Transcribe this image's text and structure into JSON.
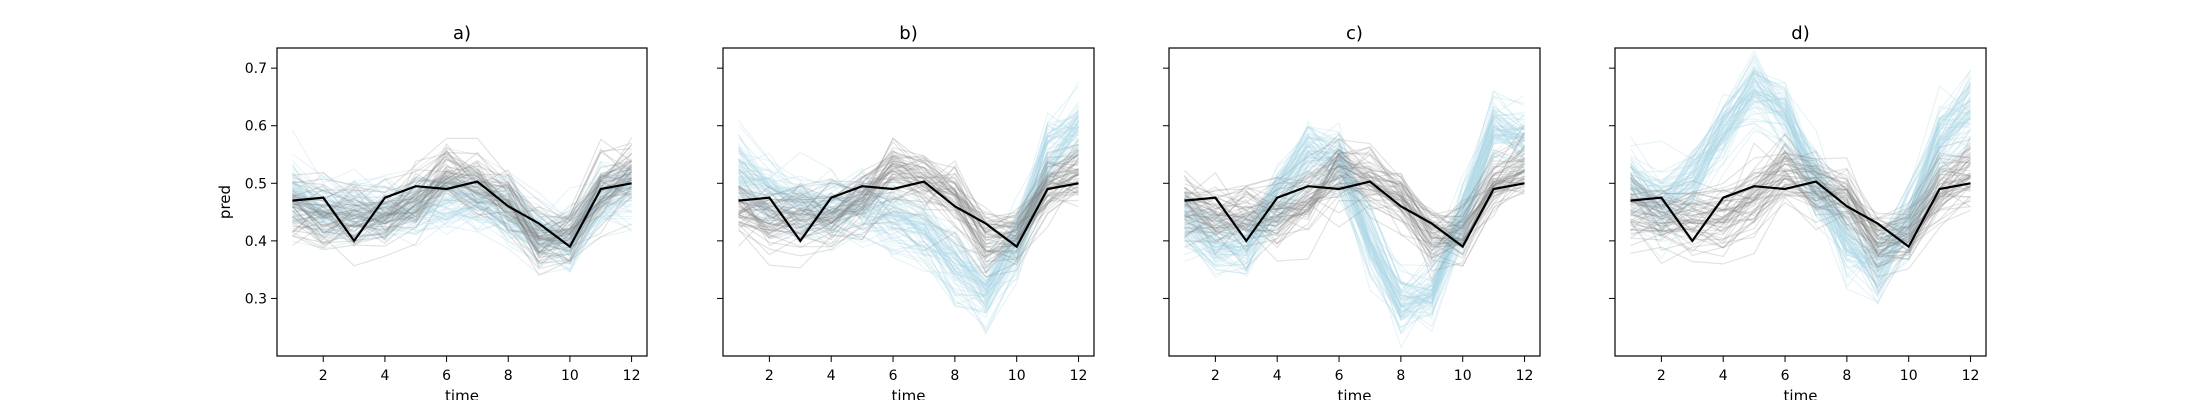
{
  "colors": {
    "background": "#ffffff",
    "observed": "#000000",
    "gray_samples": "#808080",
    "blue_samples": "#add8e6"
  },
  "chart_data": [
    {
      "type": "line",
      "title": "a)",
      "xlabel": "time",
      "ylabel": "pred",
      "xlim": [
        0.5,
        12.5
      ],
      "ylim": [
        0.2,
        0.735
      ],
      "xticks": [
        2,
        4,
        6,
        8,
        10,
        12
      ],
      "yticks": [
        0.3,
        0.4,
        0.5,
        0.6,
        0.7
      ],
      "x": [
        1,
        2,
        3,
        4,
        5,
        6,
        7,
        8,
        9,
        10,
        11,
        12
      ],
      "observed": [
        0.47,
        0.475,
        0.4,
        0.475,
        0.495,
        0.49,
        0.503,
        0.46,
        0.43,
        0.39,
        0.49,
        0.5
      ],
      "gray_mean": [
        0.46,
        0.44,
        0.44,
        0.44,
        0.47,
        0.52,
        0.5,
        0.47,
        0.4,
        0.41,
        0.49,
        0.52
      ],
      "gray_spread": 0.035,
      "blue_mean": [
        0.48,
        0.45,
        0.45,
        0.45,
        0.46,
        0.47,
        0.47,
        0.45,
        0.41,
        0.4,
        0.47,
        0.49
      ],
      "blue_spread": 0.035
    },
    {
      "type": "line",
      "title": "b)",
      "xlabel": "time",
      "ylabel": "",
      "xlim": [
        0.5,
        12.5
      ],
      "ylim": [
        0.2,
        0.735
      ],
      "xticks": [
        2,
        4,
        6,
        8,
        10,
        12
      ],
      "yticks": [
        0.3,
        0.4,
        0.5,
        0.6,
        0.7
      ],
      "x": [
        1,
        2,
        3,
        4,
        5,
        6,
        7,
        8,
        9,
        10,
        11,
        12
      ],
      "observed": [
        0.47,
        0.475,
        0.4,
        0.475,
        0.495,
        0.49,
        0.503,
        0.46,
        0.43,
        0.39,
        0.49,
        0.5
      ],
      "gray_mean": [
        0.46,
        0.44,
        0.44,
        0.44,
        0.47,
        0.52,
        0.5,
        0.47,
        0.4,
        0.41,
        0.49,
        0.52
      ],
      "gray_spread": 0.035,
      "blue_mean": [
        0.52,
        0.48,
        0.46,
        0.46,
        0.46,
        0.44,
        0.42,
        0.36,
        0.31,
        0.4,
        0.55,
        0.6
      ],
      "blue_spread": 0.04
    },
    {
      "type": "line",
      "title": "c)",
      "xlabel": "time",
      "ylabel": "",
      "xlim": [
        0.5,
        12.5
      ],
      "ylim": [
        0.2,
        0.735
      ],
      "xticks": [
        2,
        4,
        6,
        8,
        10,
        12
      ],
      "yticks": [
        0.3,
        0.4,
        0.5,
        0.6,
        0.7
      ],
      "x": [
        1,
        2,
        3,
        4,
        5,
        6,
        7,
        8,
        9,
        10,
        11,
        12
      ],
      "observed": [
        0.47,
        0.475,
        0.4,
        0.475,
        0.495,
        0.49,
        0.503,
        0.46,
        0.43,
        0.39,
        0.49,
        0.5
      ],
      "gray_mean": [
        0.46,
        0.44,
        0.44,
        0.44,
        0.47,
        0.52,
        0.5,
        0.47,
        0.4,
        0.41,
        0.49,
        0.52
      ],
      "gray_spread": 0.035,
      "blue_mean": [
        0.44,
        0.4,
        0.39,
        0.48,
        0.56,
        0.54,
        0.4,
        0.29,
        0.31,
        0.45,
        0.6,
        0.58
      ],
      "blue_spread": 0.035
    },
    {
      "type": "line",
      "title": "d)",
      "xlabel": "time",
      "ylabel": "",
      "xlim": [
        0.5,
        12.5
      ],
      "ylim": [
        0.2,
        0.735
      ],
      "xticks": [
        2,
        4,
        6,
        8,
        10,
        12
      ],
      "yticks": [
        0.3,
        0.4,
        0.5,
        0.6,
        0.7
      ],
      "x": [
        1,
        2,
        3,
        4,
        5,
        6,
        7,
        8,
        9,
        10,
        11,
        12
      ],
      "observed": [
        0.47,
        0.475,
        0.4,
        0.475,
        0.495,
        0.49,
        0.503,
        0.46,
        0.43,
        0.39,
        0.49,
        0.5
      ],
      "gray_mean": [
        0.46,
        0.44,
        0.44,
        0.44,
        0.47,
        0.52,
        0.5,
        0.47,
        0.4,
        0.41,
        0.49,
        0.52
      ],
      "gray_spread": 0.035,
      "blue_mean": [
        0.5,
        0.47,
        0.51,
        0.6,
        0.67,
        0.63,
        0.5,
        0.4,
        0.36,
        0.44,
        0.58,
        0.63
      ],
      "blue_spread": 0.04
    }
  ]
}
